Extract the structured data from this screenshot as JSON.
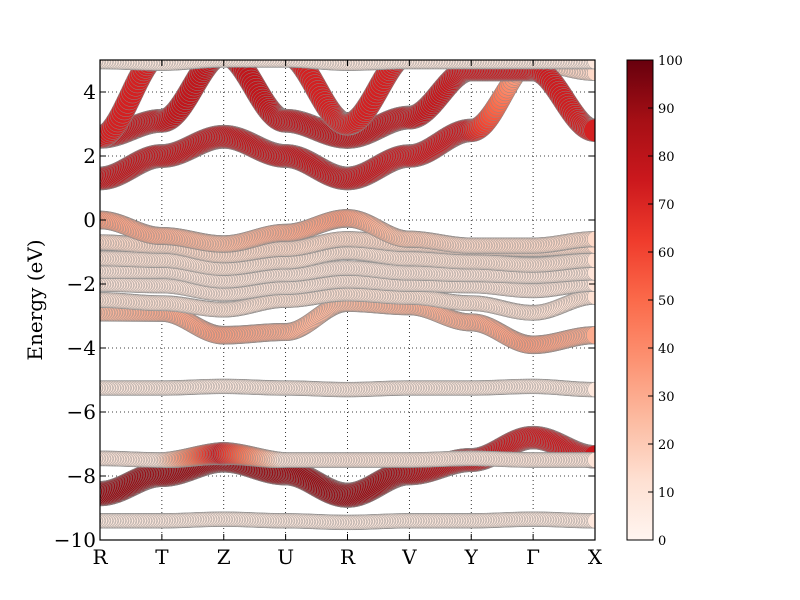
{
  "chart_data": {
    "type": "scatter",
    "subtype": "fat-band structure",
    "title": "",
    "xlabel": "",
    "ylabel": "Energy (eV)",
    "ylim": [
      -10,
      5
    ],
    "x_ticks": [
      "R",
      "T",
      "Z",
      "U",
      "R",
      "V",
      "Y",
      "Γ",
      "X"
    ],
    "y_ticks": [
      "−10",
      "−8",
      "−6",
      "−4",
      "−2",
      "0",
      "2",
      "4"
    ],
    "y_tick_values": [
      -10,
      -8,
      -6,
      -4,
      -2,
      0,
      2,
      4
    ],
    "grid": true,
    "grid_style": "dotted",
    "colormap": "Reds",
    "colorbar": {
      "range": [
        0,
        100
      ],
      "ticks": [
        "0",
        "10",
        "20",
        "30",
        "40",
        "50",
        "60",
        "70",
        "80",
        "90",
        "100"
      ],
      "tick_values": [
        0,
        10,
        20,
        30,
        40,
        50,
        60,
        70,
        80,
        90,
        100
      ],
      "placement": "right"
    },
    "bands": [
      {
        "name": "",
        "x": [
          0,
          1,
          2,
          3,
          4,
          5,
          6,
          7,
          8
        ],
        "energy": [
          -9.4,
          -9.4,
          -9.35,
          -9.4,
          -9.45,
          -9.4,
          -9.4,
          -9.35,
          -9.4
        ],
        "weight": [
          8,
          8,
          8,
          8,
          8,
          8,
          8,
          8,
          8
        ]
      },
      {
        "name": "",
        "x": [
          0,
          1,
          2,
          3,
          4,
          5,
          6,
          7,
          8
        ],
        "energy": [
          -8.55,
          -7.95,
          -7.5,
          -7.9,
          -8.6,
          -7.9,
          -7.5,
          -6.8,
          -7.4
        ],
        "weight": [
          90,
          90,
          90,
          90,
          90,
          88,
          80,
          75,
          75
        ]
      },
      {
        "name": "",
        "x": [
          0,
          1,
          2,
          3,
          4,
          5,
          6,
          7,
          8
        ],
        "energy": [
          -7.45,
          -7.5,
          -7.3,
          -7.5,
          -7.5,
          -7.5,
          -7.45,
          -7.5,
          -7.5
        ],
        "weight": [
          10,
          10,
          75,
          10,
          10,
          10,
          10,
          10,
          10
        ]
      },
      {
        "name": "",
        "x": [
          0,
          1,
          2,
          3,
          4,
          5,
          6,
          7,
          8
        ],
        "energy": [
          -5.25,
          -5.25,
          -5.2,
          -5.25,
          -5.3,
          -5.25,
          -5.25,
          -5.2,
          -5.3
        ],
        "weight": [
          8,
          8,
          8,
          8,
          8,
          8,
          8,
          8,
          8
        ]
      },
      {
        "name": "",
        "x": [
          0,
          1,
          2,
          3,
          4,
          5,
          6,
          7,
          8
        ],
        "energy": [
          -2.9,
          -2.9,
          -3.6,
          -3.5,
          -2.6,
          -2.7,
          -3.2,
          -3.9,
          -3.6
        ],
        "weight": [
          25,
          30,
          35,
          30,
          25,
          28,
          30,
          35,
          30
        ]
      },
      {
        "name": "",
        "x": [
          0,
          1,
          2,
          3,
          4,
          5,
          6,
          7,
          8
        ],
        "energy": [
          -2.5,
          -2.6,
          -2.8,
          -2.5,
          -2.3,
          -2.4,
          -2.6,
          -2.9,
          -2.4
        ],
        "weight": [
          12,
          12,
          12,
          12,
          12,
          12,
          12,
          12,
          12
        ]
      },
      {
        "name": "",
        "x": [
          0,
          1,
          2,
          3,
          4,
          5,
          6,
          7,
          8
        ],
        "energy": [
          -2.0,
          -2.05,
          -2.3,
          -2.1,
          -1.9,
          -2.0,
          -2.05,
          -2.2,
          -2.0
        ],
        "weight": [
          10,
          10,
          10,
          10,
          10,
          10,
          10,
          10,
          10
        ]
      },
      {
        "name": "",
        "x": [
          0,
          1,
          2,
          3,
          4,
          5,
          6,
          7,
          8
        ],
        "energy": [
          -1.6,
          -1.6,
          -1.9,
          -1.7,
          -1.5,
          -1.65,
          -1.7,
          -1.75,
          -1.65
        ],
        "weight": [
          10,
          10,
          10,
          10,
          10,
          10,
          10,
          10,
          10
        ]
      },
      {
        "name": "",
        "x": [
          0,
          1,
          2,
          3,
          4,
          5,
          6,
          7,
          8
        ],
        "energy": [
          -1.2,
          -1.25,
          -1.5,
          -1.3,
          -1.0,
          -1.2,
          -1.3,
          -1.4,
          -1.25
        ],
        "weight": [
          12,
          12,
          12,
          12,
          12,
          12,
          12,
          12,
          12
        ]
      },
      {
        "name": "",
        "x": [
          0,
          1,
          2,
          3,
          4,
          5,
          6,
          7,
          8
        ],
        "energy": [
          -0.7,
          -0.8,
          -1.1,
          -0.9,
          -0.6,
          -0.75,
          -0.85,
          -0.9,
          -0.8
        ],
        "weight": [
          15,
          15,
          15,
          15,
          15,
          15,
          15,
          15,
          15
        ]
      },
      {
        "name": "",
        "x": [
          0,
          1,
          2,
          3,
          4,
          5,
          6,
          7,
          8
        ],
        "energy": [
          0.0,
          -0.5,
          -0.75,
          -0.4,
          0.05,
          -0.6,
          -0.8,
          -0.8,
          -0.6
        ],
        "weight": [
          35,
          30,
          25,
          30,
          35,
          22,
          15,
          15,
          15
        ]
      },
      {
        "name": "",
        "x": [
          0,
          1,
          2,
          3,
          4,
          5,
          6,
          7,
          8
        ],
        "energy": [
          1.3,
          2.0,
          2.6,
          2.0,
          1.3,
          2.0,
          2.8,
          4.9,
          4.6
        ],
        "weight": [
          78,
          78,
          78,
          78,
          78,
          75,
          75,
          20,
          15
        ]
      },
      {
        "name": "",
        "x": [
          0,
          1,
          2,
          3,
          4,
          5,
          6,
          7,
          8
        ],
        "energy": [
          2.6,
          3.1,
          5.2,
          3.1,
          2.6,
          3.2,
          4.7,
          4.7,
          2.8
        ],
        "weight": [
          78,
          78,
          78,
          78,
          80,
          78,
          75,
          75,
          72
        ]
      },
      {
        "name": "",
        "x": [
          0,
          1,
          2,
          3,
          4,
          5,
          6,
          7,
          8
        ],
        "energy": [
          2.6,
          5.2,
          5.2,
          5.2,
          3.0,
          5.2,
          5.2,
          5.2,
          5.2
        ],
        "weight": [
          72,
          72,
          72,
          72,
          72,
          72,
          72,
          72,
          72
        ]
      },
      {
        "name": "",
        "x": [
          0,
          1,
          2,
          3,
          4,
          5,
          6,
          7,
          8
        ],
        "energy": [
          4.95,
          4.9,
          5.0,
          5.0,
          4.9,
          4.95,
          4.95,
          4.95,
          4.95
        ],
        "weight": [
          8,
          8,
          8,
          8,
          8,
          8,
          8,
          8,
          8
        ]
      }
    ]
  }
}
